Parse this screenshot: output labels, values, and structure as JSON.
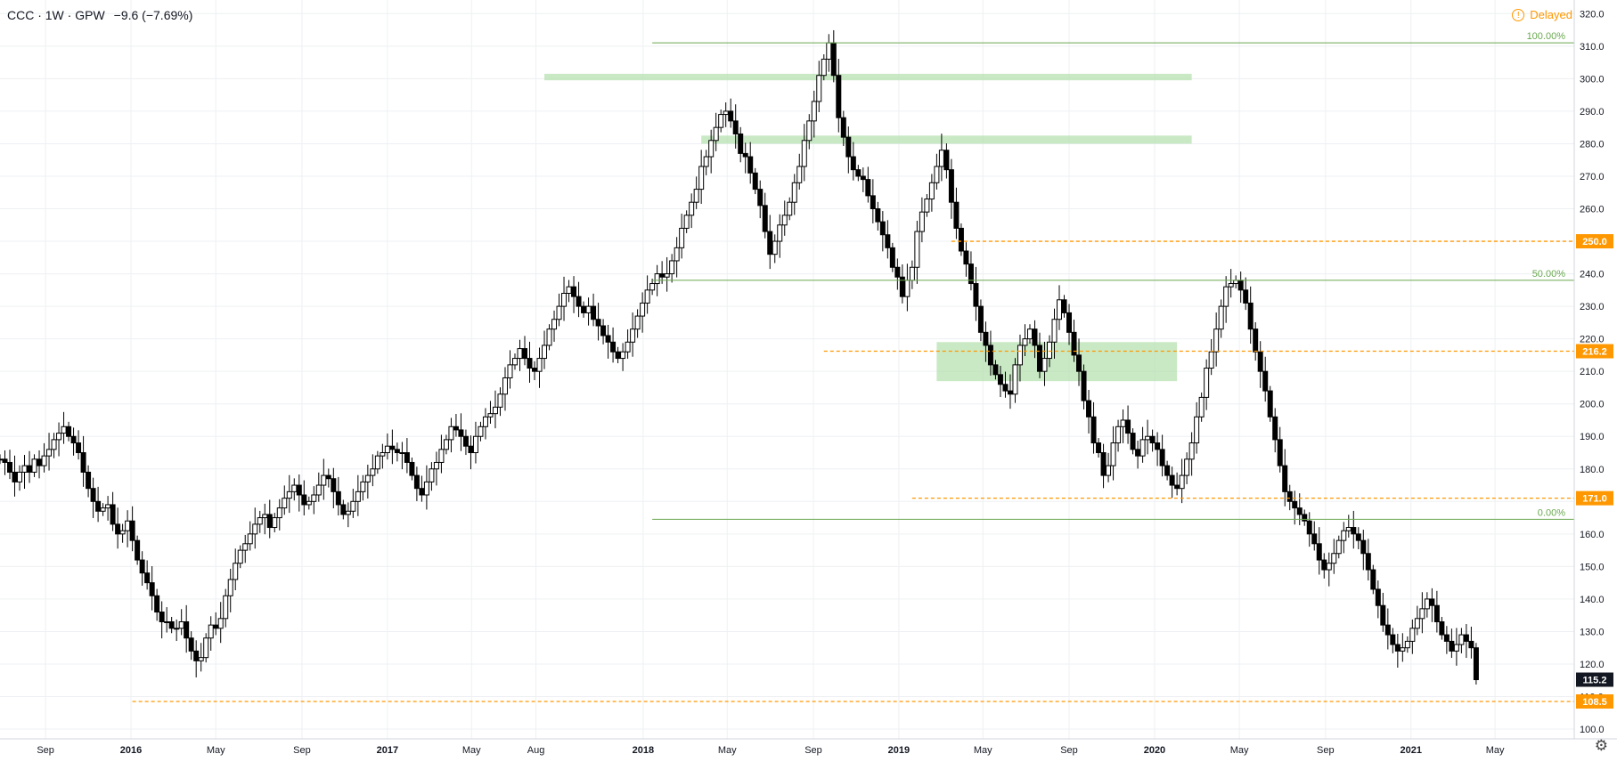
{
  "legend": {
    "symbol": "CCC · 1W · GPW",
    "change": "−9.6 (−7.69%)"
  },
  "status": {
    "delayed_label": "Delayed",
    "icon": "alert-circle-icon",
    "settings_icon": "gear-icon"
  },
  "colors": {
    "fib": "#6aa84f",
    "level": "#ff9800",
    "zone": "#b7e1b1",
    "candle": "#000000",
    "grid": "#eef0f3"
  },
  "chart_data": {
    "type": "candlestick",
    "ylim": [
      97,
      322
    ],
    "y_ticks": [
      100,
      110,
      120,
      130,
      140,
      150,
      160,
      170,
      180,
      190,
      200,
      210,
      220,
      230,
      240,
      250,
      260,
      270,
      280,
      290,
      300,
      310,
      320
    ],
    "y_tick_labels": [
      "100.0",
      "110.0",
      "120.0",
      "130.0",
      "140.0",
      "150.0",
      "160.0",
      "170.0",
      "180.0",
      "190.0",
      "200.0",
      "210.0",
      "220.0",
      "230.0",
      "240.0",
      "250.0",
      "260.0",
      "270.0",
      "280.0",
      "290.0",
      "300.0",
      "310.0",
      "320.0"
    ],
    "x_domain": [
      "2015-06-28",
      "2021-08-22"
    ],
    "x_ticks": [
      {
        "date": "2015-09-01",
        "label": "Sep",
        "bold": false
      },
      {
        "date": "2016-01-01",
        "label": "2016",
        "bold": true
      },
      {
        "date": "2016-05-01",
        "label": "May",
        "bold": false
      },
      {
        "date": "2016-09-01",
        "label": "Sep",
        "bold": false
      },
      {
        "date": "2017-01-01",
        "label": "2017",
        "bold": true
      },
      {
        "date": "2017-05-01",
        "label": "May",
        "bold": false
      },
      {
        "date": "2017-08-01",
        "label": "Aug",
        "bold": false
      },
      {
        "date": "2018-01-01",
        "label": "2018",
        "bold": true
      },
      {
        "date": "2018-05-01",
        "label": "May",
        "bold": false
      },
      {
        "date": "2018-09-01",
        "label": "Sep",
        "bold": false
      },
      {
        "date": "2019-01-01",
        "label": "2019",
        "bold": true
      },
      {
        "date": "2019-05-01",
        "label": "May",
        "bold": false
      },
      {
        "date": "2019-09-01",
        "label": "Sep",
        "bold": false
      },
      {
        "date": "2020-01-01",
        "label": "2020",
        "bold": true
      },
      {
        "date": "2020-05-01",
        "label": "May",
        "bold": false
      },
      {
        "date": "2020-09-01",
        "label": "Sep",
        "bold": false
      },
      {
        "date": "2021-01-01",
        "label": "2021",
        "bold": true
      },
      {
        "date": "2021-05-01",
        "label": "May",
        "bold": false
      }
    ],
    "anchor": {
      "first_week": "2015-06-28",
      "close_start": 183
    },
    "closes": [
      183,
      182,
      179,
      176,
      179,
      181,
      179,
      183,
      181,
      184,
      186,
      189,
      191,
      193,
      190,
      188,
      185,
      179,
      174,
      170,
      167,
      168,
      169,
      163,
      160,
      161,
      164,
      158,
      152,
      148,
      145,
      141,
      136,
      133,
      133,
      131,
      131,
      133,
      128,
      124,
      121,
      122,
      128,
      132,
      131,
      134,
      141,
      146,
      151,
      155,
      157,
      160,
      163,
      165,
      166,
      162,
      165,
      168,
      171,
      173,
      175,
      172,
      169,
      170,
      172,
      175,
      178,
      177,
      173,
      169,
      166,
      167,
      170,
      173,
      176,
      178,
      180,
      184,
      185,
      187,
      186,
      185,
      185,
      182,
      178,
      174,
      172,
      176,
      180,
      182,
      186,
      189,
      193,
      192,
      190,
      187,
      185,
      190,
      193,
      196,
      197,
      199,
      203,
      208,
      212,
      214,
      217,
      214,
      211,
      210,
      214,
      218,
      223,
      226,
      230,
      234,
      236,
      233,
      230,
      228,
      230,
      226,
      224,
      221,
      219,
      216,
      214,
      216,
      219,
      223,
      227,
      231,
      235,
      237,
      240,
      239,
      240,
      244,
      248,
      254,
      258,
      262,
      266,
      273,
      276,
      281,
      285,
      289,
      290,
      287,
      283,
      277,
      276,
      271,
      266,
      261,
      253,
      246,
      250,
      255,
      258,
      262,
      268,
      273,
      281,
      287,
      293,
      301,
      306,
      311,
      301,
      288,
      282,
      276,
      272,
      270,
      269,
      264,
      260,
      256,
      252,
      248,
      242,
      239,
      233,
      238,
      242,
      253,
      259,
      263,
      268,
      273,
      278,
      272,
      262,
      254,
      247,
      243,
      237,
      230,
      222,
      218,
      212,
      209,
      206,
      204,
      203,
      212,
      218,
      220,
      223,
      218,
      210,
      214,
      219,
      226,
      232,
      228,
      222,
      215,
      210,
      201,
      196,
      188,
      185,
      178,
      181,
      188,
      193,
      195,
      191,
      186,
      184,
      189,
      190,
      188,
      186,
      181,
      178,
      175,
      174,
      178,
      183,
      188,
      196,
      202,
      211,
      216,
      223,
      230,
      236,
      237,
      238,
      235,
      231,
      223,
      216,
      210,
      204,
      196,
      189,
      181,
      173,
      170,
      168,
      166,
      164,
      160,
      157,
      152,
      149,
      151,
      154,
      158,
      161,
      162,
      160,
      158,
      154,
      149,
      143,
      138,
      132,
      129,
      126,
      124,
      125,
      127,
      131,
      134,
      137,
      140,
      138,
      133,
      129,
      127,
      124,
      126,
      129,
      127,
      125,
      115.2
    ],
    "fib_levels": [
      {
        "label": "100.00%",
        "value": 311,
        "from": "2018-01-14",
        "to": "2021-08-22"
      },
      {
        "label": "50.00%",
        "value": 238,
        "from": "2018-01-14",
        "to": "2021-08-22"
      },
      {
        "label": "0.00%",
        "value": 164.5,
        "from": "2018-01-14",
        "to": "2021-08-22"
      }
    ],
    "horizontal_levels": [
      {
        "label": "250.0",
        "value": 250,
        "from": "2019-03-17",
        "to": "2021-08-22"
      },
      {
        "label": "216.2",
        "value": 216.2,
        "from": "2018-09-16",
        "to": "2021-08-22"
      },
      {
        "label": "171.0",
        "value": 171,
        "from": "2019-01-20",
        "to": "2021-08-22"
      },
      {
        "label": "108.5",
        "value": 108.5,
        "from": "2016-01-03",
        "to": "2021-08-22"
      }
    ],
    "zones": [
      {
        "from": "2017-08-13",
        "to": "2020-02-23",
        "low": 299.5,
        "high": 301.5
      },
      {
        "from": "2018-03-25",
        "to": "2020-02-23",
        "low": 280,
        "high": 282.5
      },
      {
        "from": "2019-02-24",
        "to": "2020-02-02",
        "low": 207,
        "high": 219
      }
    ],
    "last_price": {
      "label": "115.2",
      "value": 115.2
    }
  }
}
